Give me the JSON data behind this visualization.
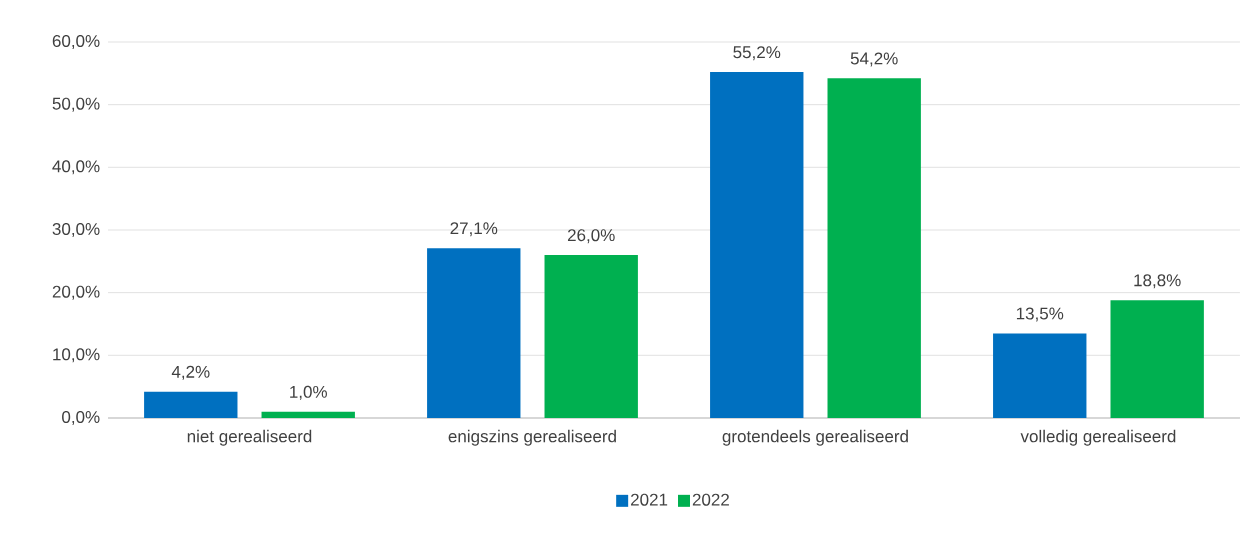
{
  "chart_data": {
    "type": "bar",
    "categories": [
      "niet gerealiseerd",
      "enigszins gerealiseerd",
      "grotendeels gerealiseerd",
      "volledig gerealiseerd"
    ],
    "series": [
      {
        "name": "2021",
        "color": "#0070c0",
        "values": [
          4.2,
          27.1,
          55.2,
          13.5
        ],
        "value_labels": [
          "4,2%",
          "27,1%",
          "55,2%",
          "13,5%"
        ]
      },
      {
        "name": "2022",
        "color": "#00b050",
        "values": [
          1.0,
          26.0,
          54.2,
          18.8
        ],
        "value_labels": [
          "1,0%",
          "26,0%",
          "54,2%",
          "18,8%"
        ]
      }
    ],
    "ylim": [
      0,
      60
    ],
    "yticks": [
      {
        "value": 0,
        "label": "0,0%"
      },
      {
        "value": 10,
        "label": "10,0%"
      },
      {
        "value": 20,
        "label": "20,0%"
      },
      {
        "value": 30,
        "label": "30,0%"
      },
      {
        "value": 40,
        "label": "40,0%"
      },
      {
        "value": 50,
        "label": "50,0%"
      },
      {
        "value": 60,
        "label": "60,0%"
      }
    ],
    "grid": "y",
    "legend": "bottom"
  }
}
